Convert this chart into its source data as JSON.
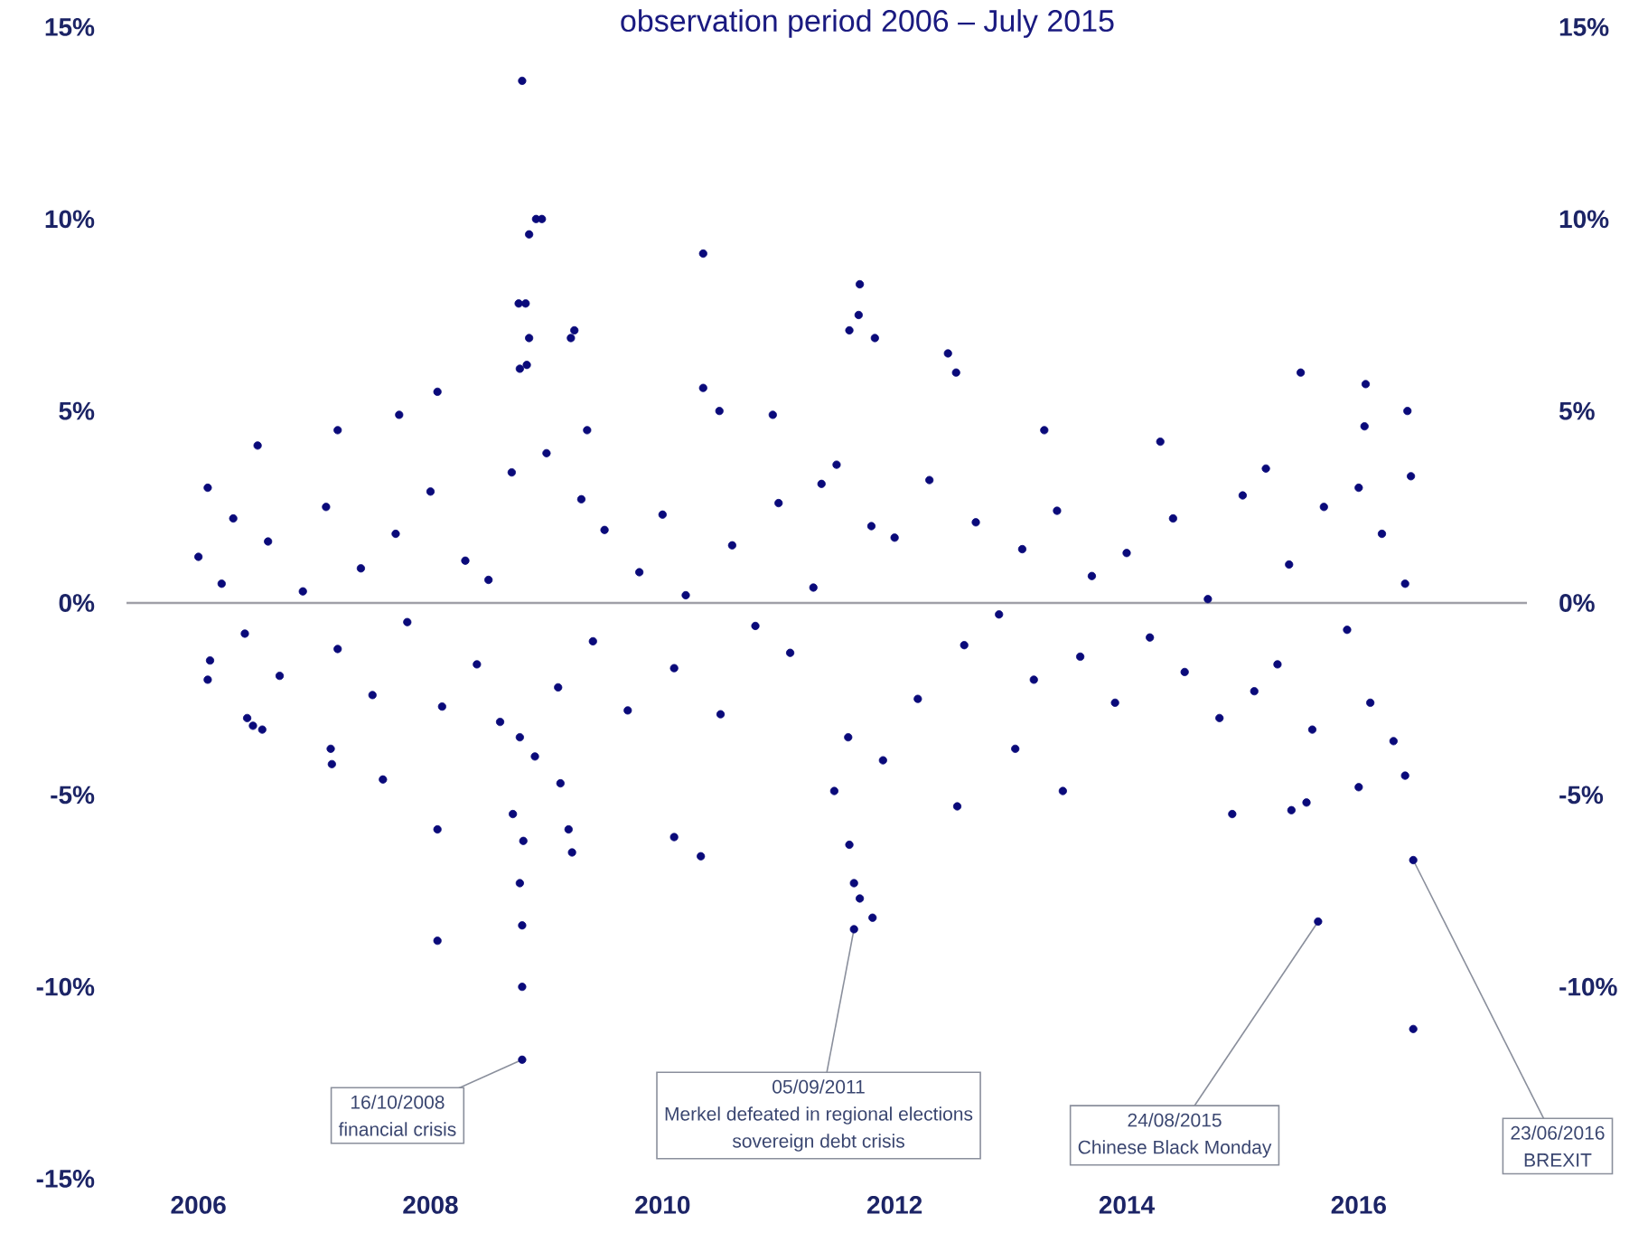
{
  "chart_data": {
    "type": "scatter",
    "title": "observation period 2006 – July 2015",
    "color": "#0a0a7a",
    "marker": "circle",
    "x": [
      2006.0,
      2006.1,
      2006.2,
      2006.3,
      2006.4,
      2006.6,
      2006.7,
      2006.9,
      2007.1,
      2007.2,
      2007.4,
      2007.5,
      2007.7,
      2007.8,
      2008.0,
      2008.1,
      2008.3,
      2008.4,
      2008.5,
      2008.6,
      2008.7,
      2008.9,
      2009.0,
      2009.1,
      2009.3,
      2009.4,
      2009.5,
      2009.7,
      2009.8,
      2010.0,
      2010.1,
      2010.2,
      2010.5,
      2010.6,
      2010.8,
      2011.0,
      2011.1,
      2011.3,
      2011.5,
      2011.6,
      2011.8,
      2011.9,
      2012.0,
      2012.2,
      2012.3,
      2012.6,
      2012.7,
      2012.9,
      2013.1,
      2013.2,
      2013.4,
      2013.6,
      2013.7,
      2013.9,
      2014.0,
      2014.2,
      2014.4,
      2014.5,
      2014.7,
      2014.8,
      2015.0,
      2015.1,
      2015.2,
      2015.3,
      2015.4,
      2015.6,
      2015.7,
      2015.9,
      2016.0,
      2016.1,
      2016.2,
      2016.3,
      2016.4,
      2016.45,
      2008.79,
      2008.91,
      2008.96,
      2008.85,
      2008.76,
      2008.82,
      2008.85,
      2009.21,
      2009.24,
      2008.77,
      2008.83,
      2010.35,
      2010.35,
      2010.49,
      2011.7,
      2011.69,
      2011.61,
      2011.83,
      2012.46,
      2012.53,
      2008.06,
      2007.73,
      2006.51,
      2006.08,
      2015.5,
      2016.06,
      2013.29,
      2014.29,
      2016.42,
      2016.05,
      2010.95,
      2009.35,
      2007.2,
      2011.37,
      2006.08,
      2006.42,
      2006.47,
      2006.55,
      2007.14,
      2007.15,
      2007.59,
      2008.06,
      2008.06,
      2008.77,
      2008.71,
      2008.8,
      2008.77,
      2008.79,
      2008.79,
      2008.79,
      2009.12,
      2009.19,
      2009.22,
      2010.1,
      2010.33,
      2011.48,
      2011.61,
      2011.65,
      2011.7,
      2011.65,
      2011.81,
      2012.54,
      2013.45,
      2013.04,
      2014.91,
      2015.42,
      2015.55,
      2016.0,
      2016.4,
      2015.65,
      2016.47,
      2016.47
    ],
    "values": [
      1.2,
      -1.5,
      0.5,
      2.2,
      -0.8,
      1.6,
      -1.9,
      0.3,
      2.5,
      -1.2,
      0.9,
      -2.4,
      1.8,
      -0.5,
      2.9,
      -2.7,
      1.1,
      -1.6,
      0.6,
      -3.1,
      3.4,
      -4.0,
      3.9,
      -2.2,
      2.7,
      -1.0,
      1.9,
      -2.8,
      0.8,
      2.3,
      -1.7,
      0.2,
      -2.9,
      1.5,
      -0.6,
      2.6,
      -1.3,
      0.4,
      3.6,
      -3.5,
      2.0,
      -4.1,
      1.7,
      -2.5,
      3.2,
      -1.1,
      2.1,
      -0.3,
      1.4,
      -2.0,
      2.4,
      -1.4,
      0.7,
      -2.6,
      1.3,
      -0.9,
      2.2,
      -1.8,
      0.1,
      -3.0,
      2.8,
      -2.3,
      3.5,
      -1.6,
      1.0,
      -3.3,
      2.5,
      -0.7,
      3.0,
      -2.6,
      1.8,
      -3.6,
      0.5,
      3.3,
      13.6,
      10.0,
      10.0,
      9.6,
      7.8,
      7.8,
      6.9,
      6.9,
      7.1,
      6.1,
      6.2,
      9.1,
      5.6,
      5.0,
      8.3,
      7.5,
      7.1,
      6.9,
      6.5,
      6.0,
      5.5,
      4.9,
      4.1,
      3.0,
      6.0,
      5.7,
      4.5,
      4.2,
      5.0,
      4.6,
      4.9,
      4.5,
      4.5,
      3.1,
      -2.0,
      -3.0,
      -3.2,
      -3.3,
      -3.8,
      -4.2,
      -4.6,
      -5.9,
      -8.8,
      -3.5,
      -5.5,
      -6.2,
      -7.3,
      -8.4,
      -10.0,
      -11.9,
      -4.7,
      -5.9,
      -6.5,
      -6.1,
      -6.6,
      -4.9,
      -6.3,
      -7.3,
      -7.7,
      -8.5,
      -8.2,
      -5.3,
      -4.9,
      -3.8,
      -5.5,
      -5.4,
      -5.2,
      -4.8,
      -4.5,
      -8.3,
      -6.7,
      -11.1
    ],
    "xlim": [
      2005.38,
      2017.45
    ],
    "xticks": [
      2006,
      2008,
      2010,
      2012,
      2014,
      2016
    ],
    "ylim": [
      -15,
      15
    ],
    "yticks": [
      {
        "value": -15,
        "label": "-15%"
      },
      {
        "value": -10,
        "label": "-10%"
      },
      {
        "value": -5,
        "label": "-5%"
      },
      {
        "value": 0,
        "label": "0%"
      },
      {
        "value": 5,
        "label": "5%"
      },
      {
        "value": 10,
        "label": "10%"
      },
      {
        "value": 15,
        "label": "15%"
      }
    ],
    "y2lim": [
      -10,
      15
    ],
    "y2ticks": [
      {
        "value": -10,
        "label": "-10%"
      },
      {
        "value": -5,
        "label": "-5%"
      },
      {
        "value": 0,
        "label": "0%"
      },
      {
        "value": 5,
        "label": "5%"
      },
      {
        "value": 10,
        "label": "10%"
      },
      {
        "value": 15,
        "label": "15%"
      }
    ],
    "ref_lines": [
      {
        "axis": "y",
        "value": 0,
        "color": "#a0a0a8"
      }
    ],
    "annotations": [
      {
        "text": "16/10/2008",
        "x": 2008.79,
        "y": -11.9
      },
      "financial crisis",
      {
        "text": "05/09/2011",
        "x": 2011.65,
        "y": -8.5
      },
      "Merkel defeated in regional elections",
      "sovereign debt crisis",
      {
        "text": "24/08/2015",
        "x": 2015.65,
        "y": -8.3
      },
      "Chinese Black Monday",
      {
        "text": "23/06/2016",
        "x": 2016.47,
        "y": -6.7
      },
      "BREXIT"
    ]
  }
}
